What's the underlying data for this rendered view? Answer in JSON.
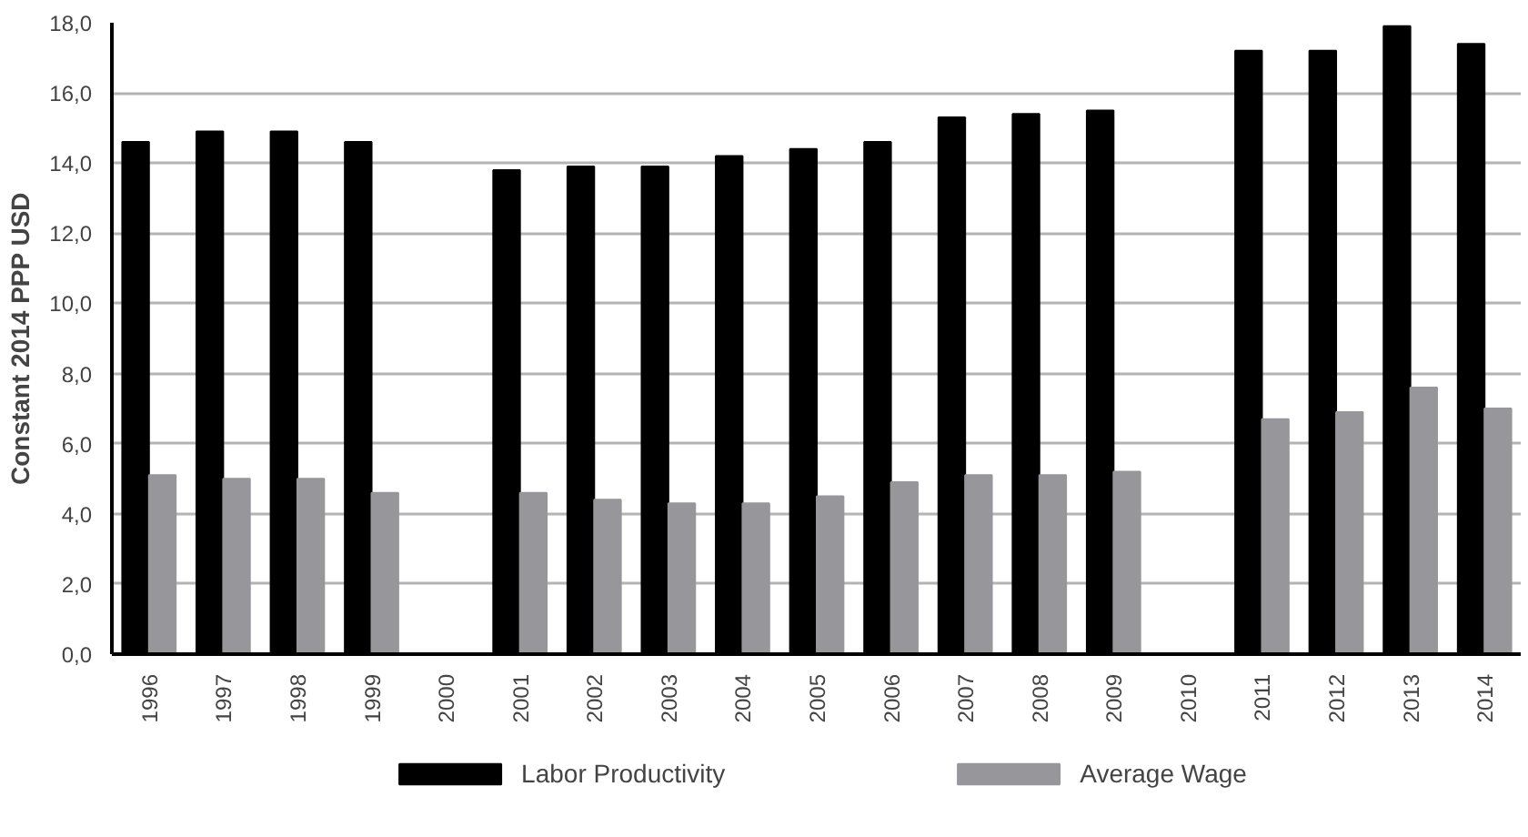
{
  "chart_data": {
    "type": "bar",
    "ylabel": "Constant 2014 PPP USD",
    "categories": [
      "1996",
      "1997",
      "1998",
      "1999",
      "2000",
      "2001",
      "2002",
      "2003",
      "2004",
      "2005",
      "2006",
      "2007",
      "2008",
      "2009",
      "2010",
      "2011",
      "2012",
      "2013",
      "2014"
    ],
    "series": [
      {
        "name": "Labor Productivity",
        "color": "#000000",
        "values": [
          14.6,
          14.9,
          14.9,
          14.6,
          null,
          13.8,
          13.9,
          13.9,
          14.2,
          14.4,
          14.6,
          15.3,
          15.4,
          15.5,
          null,
          17.2,
          17.2,
          17.9,
          17.4
        ]
      },
      {
        "name": "Average Wage",
        "color": "#97979b",
        "values": [
          5.1,
          5.0,
          5.0,
          4.6,
          null,
          4.6,
          4.4,
          4.3,
          4.3,
          4.5,
          4.9,
          5.1,
          5.1,
          5.2,
          null,
          6.7,
          6.9,
          7.6,
          7.0
        ]
      }
    ],
    "ylim": [
      0,
      18
    ],
    "yticks": [
      {
        "value": 0,
        "label": "0,0"
      },
      {
        "value": 2,
        "label": "2,0"
      },
      {
        "value": 4,
        "label": "4,0"
      },
      {
        "value": 6,
        "label": "6,0"
      },
      {
        "value": 8,
        "label": "8,0"
      },
      {
        "value": 10,
        "label": "10,0"
      },
      {
        "value": 12,
        "label": "12,0"
      },
      {
        "value": 14,
        "label": "14,0"
      },
      {
        "value": 16,
        "label": "16,0"
      },
      {
        "value": 18,
        "label": "18,0"
      }
    ],
    "grid": "y",
    "legend": "bottom"
  }
}
